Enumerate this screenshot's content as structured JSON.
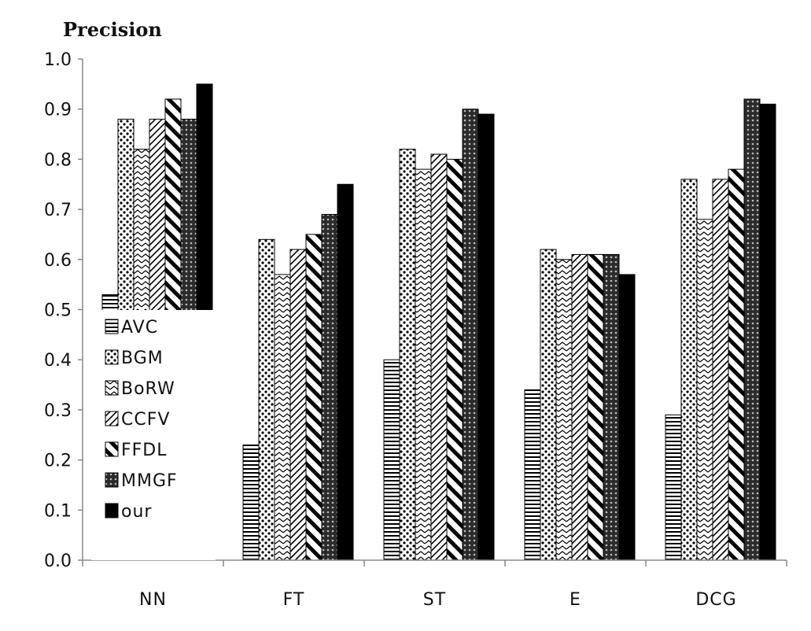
{
  "chart_data": {
    "type": "bar",
    "ylabel": "Precision",
    "xlabel": "",
    "title": "",
    "ylim": [
      0.0,
      1.0
    ],
    "yticks": [
      "0.0",
      "0.1",
      "0.2",
      "0.3",
      "0.4",
      "0.5",
      "0.6",
      "0.7",
      "0.8",
      "0.9",
      "1.0"
    ],
    "categories": [
      "NN",
      "FT",
      "ST",
      "E",
      "DCG"
    ],
    "legend_position": "left, overlapping the NN group",
    "series": [
      {
        "name": "AVC",
        "pattern": "hlines",
        "values": [
          0.53,
          0.23,
          0.4,
          0.34,
          0.29
        ]
      },
      {
        "name": "BGM",
        "pattern": "dots",
        "values": [
          0.88,
          0.64,
          0.82,
          0.62,
          0.76
        ]
      },
      {
        "name": "BoRW",
        "pattern": "zigzag",
        "values": [
          0.82,
          0.57,
          0.78,
          0.6,
          0.68
        ]
      },
      {
        "name": "CCFV",
        "pattern": "thin-diag",
        "values": [
          0.88,
          0.62,
          0.81,
          0.61,
          0.76
        ]
      },
      {
        "name": "FFDL",
        "pattern": "thick-diag",
        "values": [
          0.92,
          0.65,
          0.8,
          0.61,
          0.78
        ]
      },
      {
        "name": "MMGF",
        "pattern": "cross",
        "values": [
          0.88,
          0.69,
          0.9,
          0.61,
          0.92
        ]
      },
      {
        "name": "our",
        "pattern": "solid",
        "values": [
          0.95,
          0.75,
          0.89,
          0.57,
          0.91
        ]
      }
    ]
  }
}
